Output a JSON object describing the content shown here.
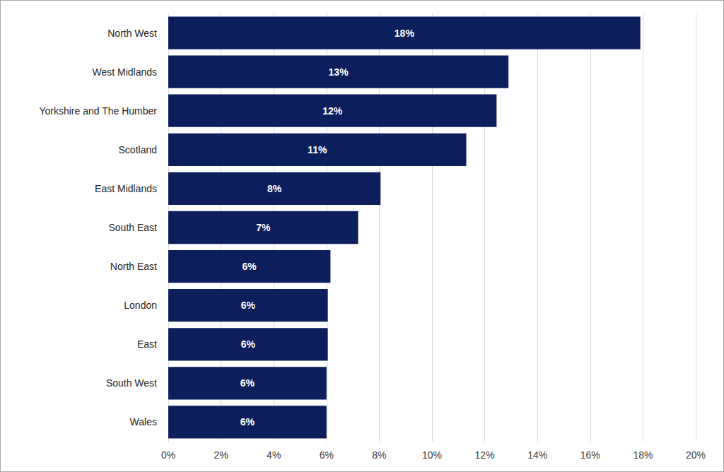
{
  "chart_data": {
    "type": "bar",
    "orientation": "horizontal",
    "categories": [
      "North West",
      "West Midlands",
      "Yorkshire and The Humber",
      "Scotland",
      "East Midlands",
      "South East",
      "North East",
      "London",
      "East",
      "South West",
      "Wales"
    ],
    "values": [
      17.9,
      12.9,
      12.45,
      11.3,
      8.05,
      7.2,
      6.15,
      6.05,
      6.05,
      6.0,
      6.0
    ],
    "value_labels": [
      "18%",
      "13%",
      "12%",
      "11%",
      "8%",
      "7%",
      "6%",
      "6%",
      "6%",
      "6%",
      "6%"
    ],
    "color": "#0c1f5c",
    "xlim": [
      0,
      20
    ],
    "xticks": [
      {
        "value": 0,
        "label": "0%"
      },
      {
        "value": 2,
        "label": "2%"
      },
      {
        "value": 4,
        "label": "4%"
      },
      {
        "value": 6,
        "label": "6%"
      },
      {
        "value": 8,
        "label": "8%"
      },
      {
        "value": 10,
        "label": "10%"
      },
      {
        "value": 12,
        "label": "12%"
      },
      {
        "value": 14,
        "label": "14%"
      },
      {
        "value": 16,
        "label": "16%"
      },
      {
        "value": 18,
        "label": "18%"
      },
      {
        "value": 20,
        "label": "20%"
      }
    ],
    "grid": true,
    "data_labels": true
  }
}
